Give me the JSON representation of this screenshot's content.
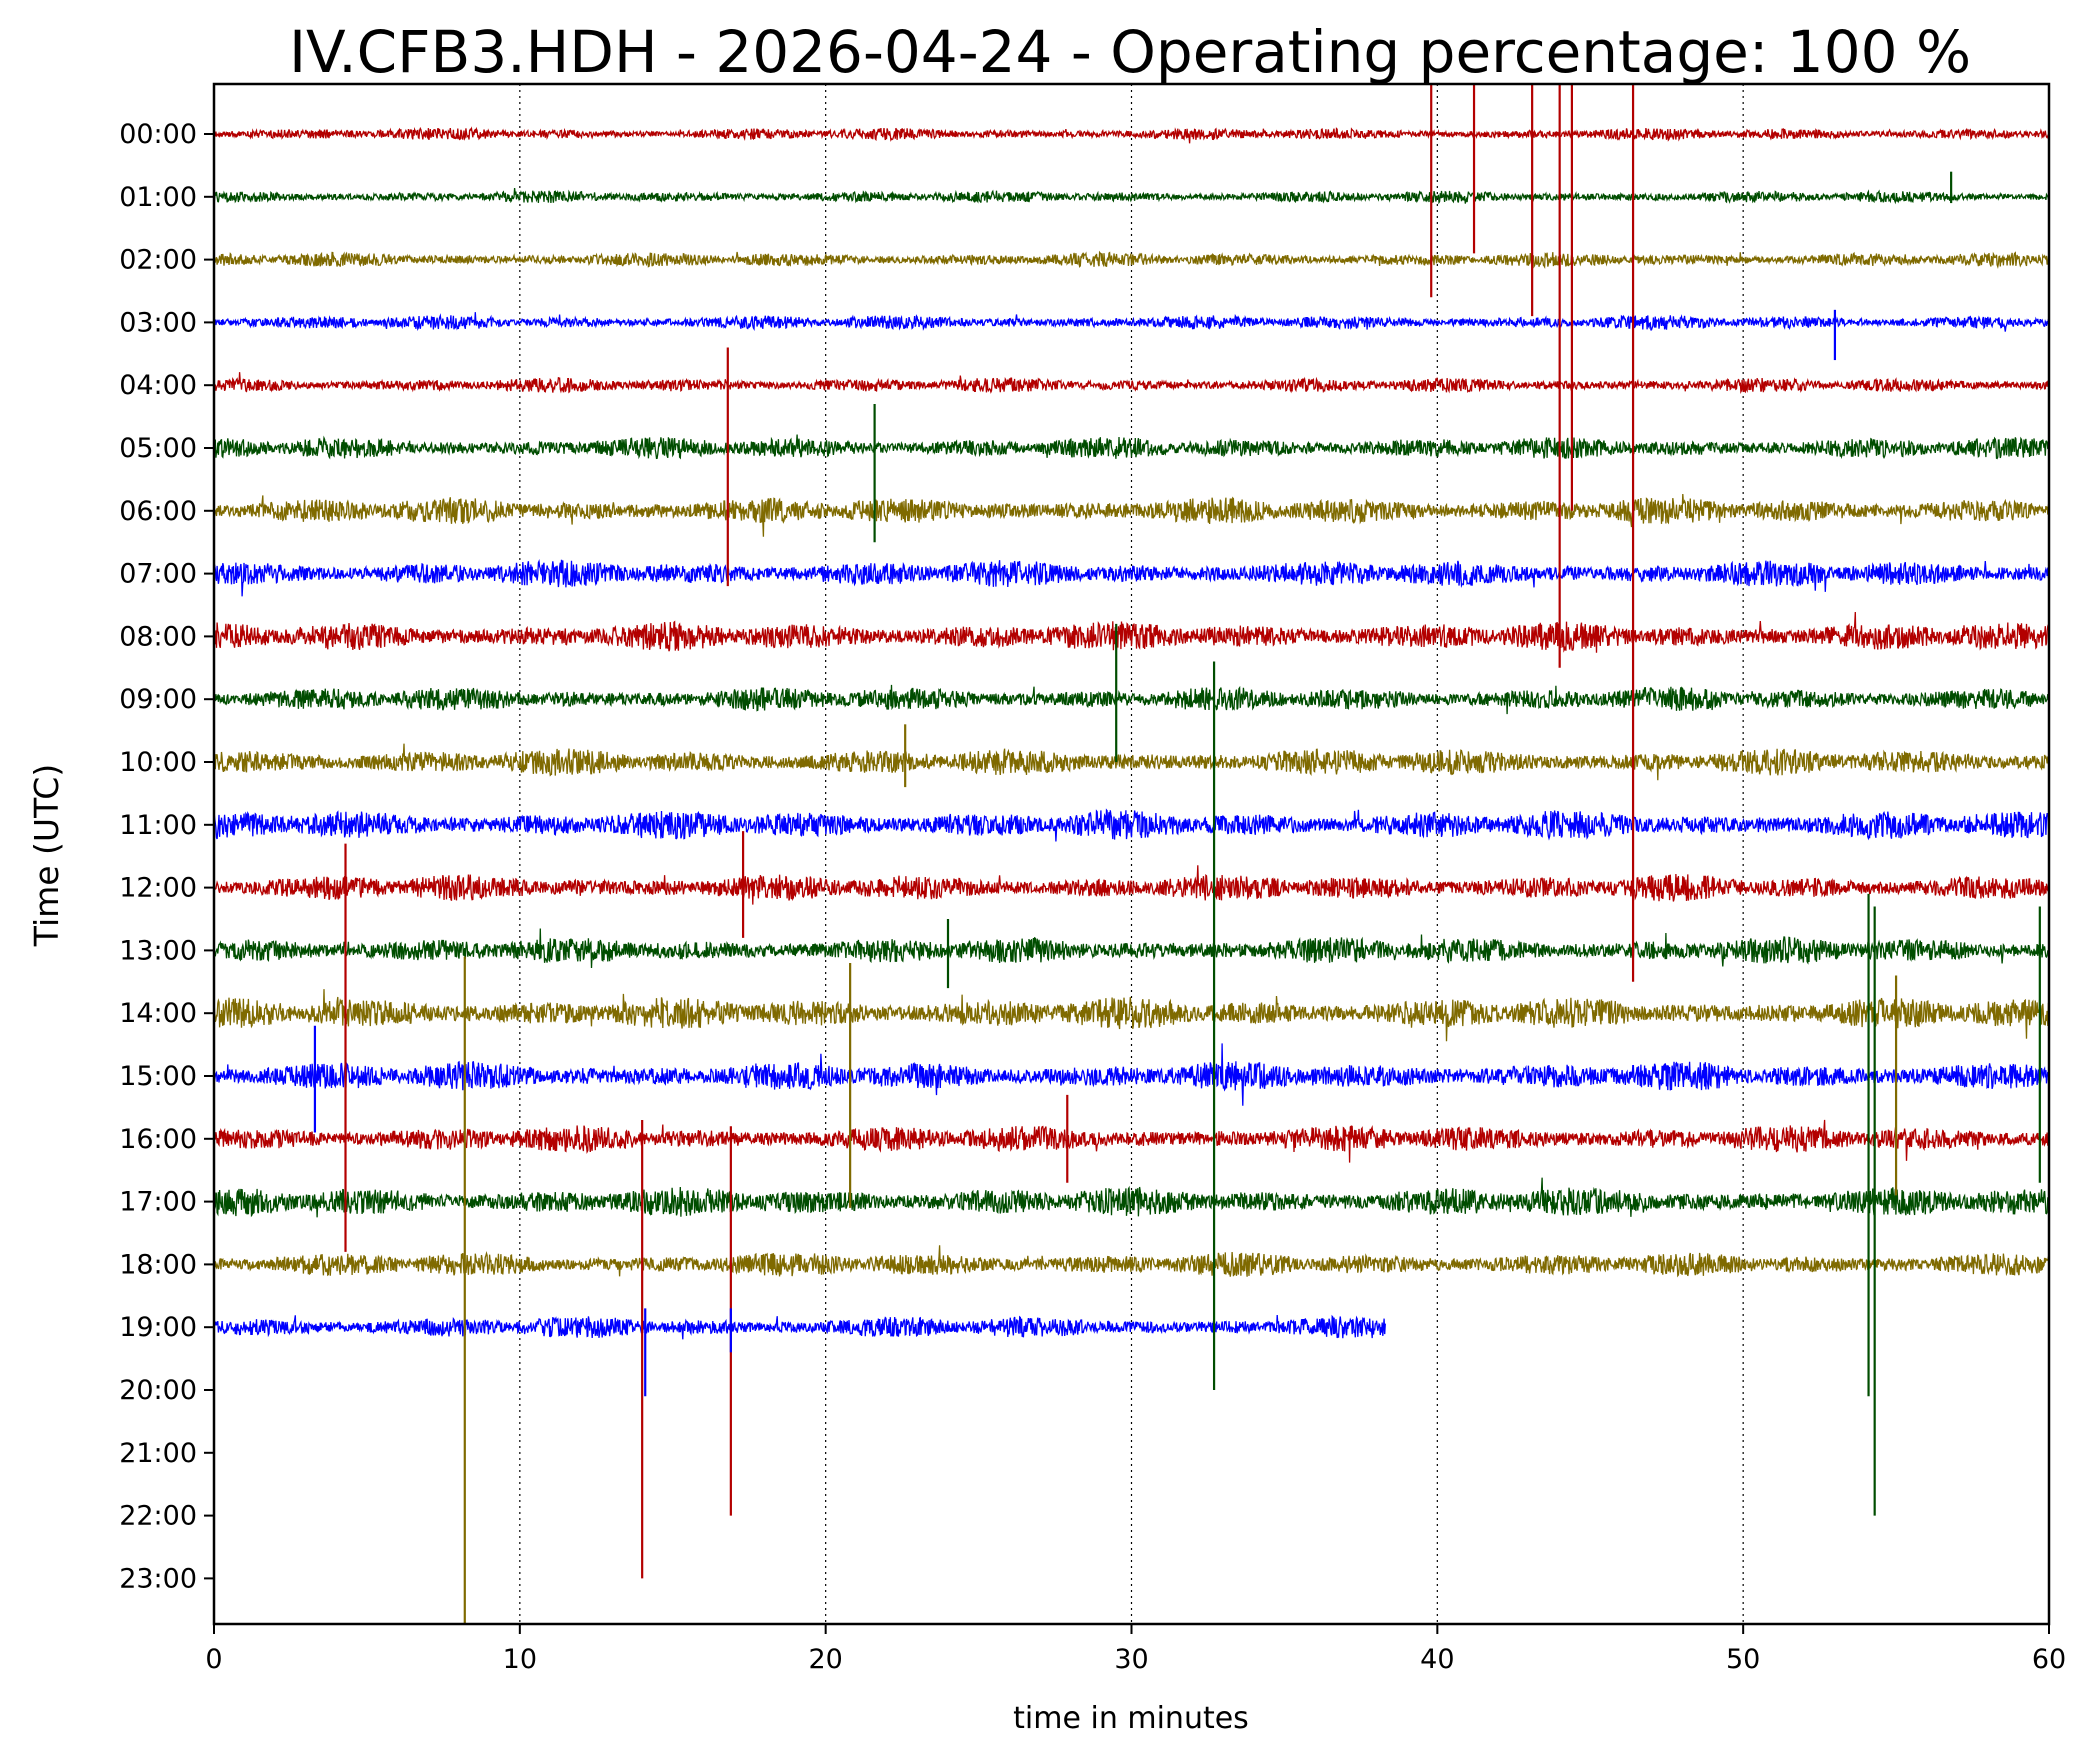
{
  "chart_data": {
    "type": "line",
    "title": "IV.CFB3.HDH - 2026-04-24 - Operating percentage: 100 %",
    "xlabel": "time in minutes",
    "ylabel": "Time (UTC)",
    "xlim": [
      0,
      60
    ],
    "x_ticks": [
      "0",
      "10",
      "20",
      "30",
      "40",
      "50",
      "60"
    ],
    "x_tick_values": [
      0,
      10,
      20,
      30,
      40,
      50,
      60
    ],
    "grid": "vertical dotted at each x tick",
    "y_ticks": [
      "00:00",
      "01:00",
      "02:00",
      "03:00",
      "04:00",
      "05:00",
      "06:00",
      "07:00",
      "08:00",
      "09:00",
      "10:00",
      "11:00",
      "12:00",
      "13:00",
      "14:00",
      "15:00",
      "16:00",
      "17:00",
      "18:00",
      "19:00",
      "20:00",
      "21:00",
      "22:00",
      "23:00"
    ],
    "trace_colors": [
      "#b30000",
      "#004d00",
      "#7f6a00",
      "#0000ff"
    ],
    "traces": [
      {
        "hour": 0,
        "end_minute": 60,
        "level": 0.25
      },
      {
        "hour": 1,
        "end_minute": 60,
        "level": 0.25
      },
      {
        "hour": 2,
        "end_minute": 60,
        "level": 0.3
      },
      {
        "hour": 3,
        "end_minute": 60,
        "level": 0.3
      },
      {
        "hour": 4,
        "end_minute": 60,
        "level": 0.3
      },
      {
        "hour": 5,
        "end_minute": 60,
        "level": 0.45
      },
      {
        "hour": 6,
        "end_minute": 60,
        "level": 0.55
      },
      {
        "hour": 7,
        "end_minute": 60,
        "level": 0.55
      },
      {
        "hour": 8,
        "end_minute": 60,
        "level": 0.6
      },
      {
        "hour": 9,
        "end_minute": 60,
        "level": 0.5
      },
      {
        "hour": 10,
        "end_minute": 60,
        "level": 0.55
      },
      {
        "hour": 11,
        "end_minute": 60,
        "level": 0.6
      },
      {
        "hour": 12,
        "end_minute": 60,
        "level": 0.55
      },
      {
        "hour": 13,
        "end_minute": 60,
        "level": 0.55
      },
      {
        "hour": 14,
        "end_minute": 60,
        "level": 0.65
      },
      {
        "hour": 15,
        "end_minute": 60,
        "level": 0.6
      },
      {
        "hour": 16,
        "end_minute": 60,
        "level": 0.55
      },
      {
        "hour": 17,
        "end_minute": 60,
        "level": 0.6
      },
      {
        "hour": 18,
        "end_minute": 60,
        "level": 0.5
      },
      {
        "hour": 19,
        "end_minute": 38.3,
        "level": 0.45
      }
    ],
    "events": [
      {
        "hour": 0,
        "minute": 39.8,
        "up": 0.9,
        "down": 2.6
      },
      {
        "hour": 0,
        "minute": 41.2,
        "up": 0.9,
        "down": 1.9
      },
      {
        "hour": 0,
        "minute": 43.1,
        "up": 0.9,
        "down": 2.9
      },
      {
        "hour": 0,
        "minute": 44.0,
        "up": 0.9,
        "down": 8.5
      },
      {
        "hour": 0,
        "minute": 44.4,
        "up": 0.9,
        "down": 6.0
      },
      {
        "hour": 0,
        "minute": 46.4,
        "up": 0.8,
        "down": 13.5
      },
      {
        "hour": 1,
        "minute": 56.8,
        "up": 0.4,
        "down": 0.1
      },
      {
        "hour": 3,
        "minute": 53.0,
        "up": 0.2,
        "down": 0.6
      },
      {
        "hour": 4,
        "minute": 16.8,
        "up": 0.6,
        "down": 3.2
      },
      {
        "hour": 5,
        "minute": 21.6,
        "up": 0.7,
        "down": 1.5
      },
      {
        "hour": 9,
        "minute": 29.5,
        "up": 1.2,
        "down": 1.0
      },
      {
        "hour": 9,
        "minute": 32.7,
        "up": 0.6,
        "down": 11.0
      },
      {
        "hour": 10,
        "minute": 22.6,
        "up": 0.6,
        "down": 0.4
      },
      {
        "hour": 12,
        "minute": 4.3,
        "up": 0.7,
        "down": 5.8
      },
      {
        "hour": 12,
        "minute": 17.3,
        "up": 0.9,
        "down": 0.8
      },
      {
        "hour": 13,
        "minute": 24.0,
        "up": 0.5,
        "down": 0.6
      },
      {
        "hour": 14,
        "minute": 8.2,
        "up": 0.9,
        "down": 9.9
      },
      {
        "hour": 14,
        "minute": 20.8,
        "up": 0.8,
        "down": 3.1
      },
      {
        "hour": 15,
        "minute": 3.3,
        "up": 0.8,
        "down": 0.9
      },
      {
        "hour": 16,
        "minute": 14.0,
        "up": 0.3,
        "down": 7.0
      },
      {
        "hour": 16,
        "minute": 16.9,
        "up": 0.2,
        "down": 6.0
      },
      {
        "hour": 16,
        "minute": 27.9,
        "up": 0.7,
        "down": 0.7
      },
      {
        "hour": 13,
        "minute": 54.1,
        "up": 0.9,
        "down": 7.1
      },
      {
        "hour": 13,
        "minute": 54.3,
        "up": 0.7,
        "down": 9.0
      },
      {
        "hour": 14,
        "minute": 55.0,
        "up": 0.6,
        "down": 2.9
      },
      {
        "hour": 13,
        "minute": 59.7,
        "up": 0.7,
        "down": 3.7
      },
      {
        "hour": 19,
        "minute": 14.1,
        "up": 0.3,
        "down": 1.1
      },
      {
        "hour": 19,
        "minute": 16.9,
        "up": 0.3,
        "down": 0.4
      }
    ]
  }
}
